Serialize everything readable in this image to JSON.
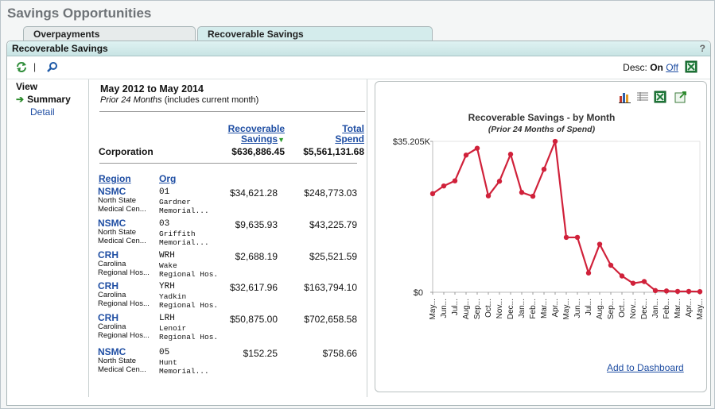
{
  "page_title": "Savings Opportunities",
  "tabs": [
    {
      "label": "Overpayments",
      "active": false
    },
    {
      "label": "Recoverable Savings",
      "active": true
    }
  ],
  "panel": {
    "title": "Recoverable Savings",
    "help": "?"
  },
  "toolbar": {
    "separator": "|",
    "desc_label": "Desc:",
    "desc_on": "On",
    "desc_off": "Off"
  },
  "view": {
    "title": "View",
    "summary": "Summary",
    "detail": "Detail",
    "arrow": "➔"
  },
  "table": {
    "date_range": "May 2012 to May 2014",
    "prior_label": "Prior 24 Months",
    "prior_note": "(includes current month)",
    "hdr_recoverable_1": "Recoverable",
    "hdr_recoverable_2": "Savings",
    "hdr_total_1": "Total",
    "hdr_total_2": "Spend",
    "corp_label": "Corporation",
    "corp_recoverable": "$636,886.45",
    "corp_total": "$5,561,131.68",
    "col_region": "Region",
    "col_org": "Org",
    "rows": [
      {
        "region": "NSMC",
        "region_name_1": "North State",
        "region_name_2": "Medical Cen...",
        "org": "01",
        "org_name_1": "Gardner",
        "org_name_2": "Memorial...",
        "recoverable": "$34,621.28",
        "total": "$248,773.03"
      },
      {
        "region": "NSMC",
        "region_name_1": "North State",
        "region_name_2": "Medical Cen...",
        "org": "03",
        "org_name_1": "Griffith",
        "org_name_2": "Memorial...",
        "recoverable": "$9,635.93",
        "total": "$43,225.79"
      },
      {
        "region": "CRH",
        "region_name_1": "Carolina",
        "region_name_2": "Regional Hos...",
        "org": "WRH",
        "org_name_1": "Wake",
        "org_name_2": "Regional Hos...",
        "recoverable": "$2,688.19",
        "total": "$25,521.59"
      },
      {
        "region": "CRH",
        "region_name_1": "Carolina",
        "region_name_2": "Regional Hos...",
        "org": "YRH",
        "org_name_1": "Yadkin",
        "org_name_2": "Regional Hos...",
        "recoverable": "$32,617.96",
        "total": "$163,794.10"
      },
      {
        "region": "CRH",
        "region_name_1": "Carolina",
        "region_name_2": "Regional Hos...",
        "org": "LRH",
        "org_name_1": "Lenoir",
        "org_name_2": "Regional Hos...",
        "recoverable": "$50,875.00",
        "total": "$702,658.58"
      },
      {
        "region": "NSMC",
        "region_name_1": "North State",
        "region_name_2": "Medical Cen...",
        "org": "05",
        "org_name_1": "Hunt",
        "org_name_2": "Memorial...",
        "recoverable": "$152.25",
        "total": "$758.66"
      }
    ]
  },
  "chart": {
    "add_to_dashboard": "Add to Dashboard",
    "tools": [
      "bar-chart-icon",
      "grid-icon",
      "excel-icon",
      "popout-icon"
    ]
  },
  "chart_data": {
    "type": "line",
    "title": "Recoverable Savings - by Month",
    "subtitle": "(Prior 24 Months of Spend)",
    "xlabel": "",
    "ylabel": "",
    "ylim": [
      0,
      35205
    ],
    "y_tick_labels": [
      "$35.205K",
      "$0"
    ],
    "grid": false,
    "legend": "none",
    "line_color": "#d0213a",
    "x": [
      "May...",
      "Jun...",
      "Jul...",
      "Aug...",
      "Sep...",
      "Oct...",
      "Nov...",
      "Dec...",
      "Jan...",
      "Feb...",
      "Mar...",
      "Apr...",
      "May...",
      "Jun...",
      "Jul...",
      "Aug...",
      "Sep...",
      "Oct...",
      "Nov...",
      "Dec...",
      "Jan...",
      "Feb...",
      "Mar...",
      "Apr...",
      "May..."
    ],
    "values": [
      23000,
      24800,
      26000,
      32000,
      33600,
      22500,
      25900,
      32200,
      23300,
      22400,
      28700,
      35200,
      12800,
      12800,
      4500,
      11200,
      6300,
      3800,
      2100,
      2500,
      400,
      300,
      200,
      200,
      150
    ]
  }
}
